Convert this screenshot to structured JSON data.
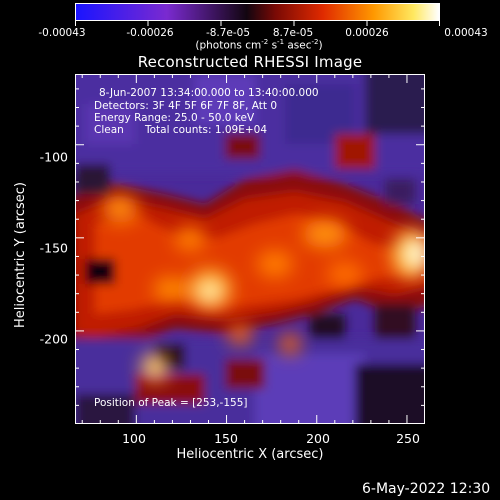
{
  "colorbar": {
    "tick_labels": [
      "-0.00043",
      "-0.00026",
      "-8.7e-05",
      "8.7e-05",
      "0.00026",
      "0.00043"
    ],
    "units_text": "(photons cm",
    "units_exp1": "-2",
    "units_mid": " s",
    "units_exp2": "-1",
    "units_end": " asec",
    "units_exp3": "-2",
    "units_close": ")",
    "range": [
      -0.00043,
      0.00043
    ]
  },
  "title": "Reconstructed RHESSI Image",
  "annotations": {
    "time_range": "8-Jun-2007 13:34:00.000 to 13:40:00.000",
    "detectors": "Detectors: 3F 4F 5F 6F 7F 8F, Att 0",
    "energy": "Energy Range: 25.0 - 50.0 keV",
    "method": "Clean",
    "counts": "Total counts: 1.09E+04",
    "peak": "Position of Peak = [253,-155]"
  },
  "datestamp": "6-May-2022 12:30",
  "chart_data": {
    "type": "heatmap",
    "title": "Reconstructed RHESSI Image",
    "xlabel": "Heliocentric X (arcsec)",
    "ylabel": "Heliocentric Y (arcsec)",
    "x_ticks": [
      "100",
      "150",
      "200",
      "250"
    ],
    "y_ticks": [
      "-100",
      "-150",
      "-200"
    ],
    "xlim": [
      66,
      260
    ],
    "ylim": [
      -250,
      -62
    ],
    "color_range": [
      -0.00043,
      0.00043
    ],
    "colormap": "blue-purple-black-red-orange-yellow-white",
    "peak_position": [
      253,
      -155
    ],
    "units": "photons cm^-2 s^-1 asec^-2"
  }
}
